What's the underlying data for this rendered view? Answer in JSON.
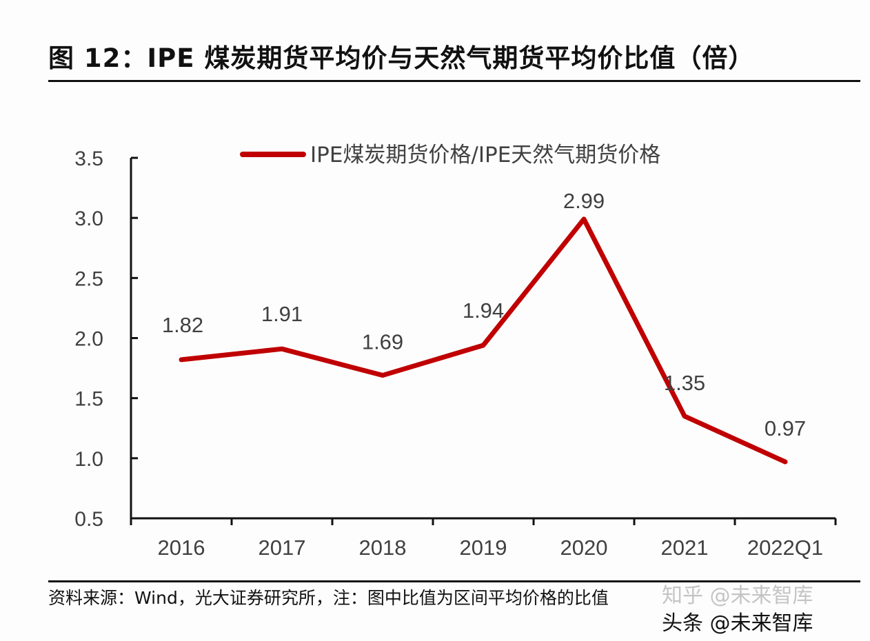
{
  "title": "图 12：IPE 煤炭期货平均价与天然气期货平均价比值（倍）",
  "source": "资料来源：Wind，光大证券研究所，注：图中比值为区间平均价格的比值",
  "watermarks": [
    "知乎 @未来智库",
    "头条 @未来智库"
  ],
  "chart_data": {
    "type": "line",
    "title": "",
    "xlabel": "",
    "ylabel": "",
    "categories": [
      "2016",
      "2017",
      "2018",
      "2019",
      "2020",
      "2021",
      "2022Q1"
    ],
    "series": [
      {
        "name": "IPE煤炭期货价格/IPE天然气期货价格",
        "values": [
          1.82,
          1.91,
          1.69,
          1.94,
          2.99,
          1.35,
          0.97
        ],
        "color": "#c00000"
      }
    ],
    "data_labels": [
      "1.82",
      "1.91",
      "1.69",
      "1.94",
      "2.99",
      "1.35",
      "0.97"
    ],
    "ylim": [
      0.5,
      3.5
    ],
    "yticks": [
      "0.5",
      "1.0",
      "1.5",
      "2.0",
      "2.5",
      "3.0",
      "3.5"
    ],
    "grid": false,
    "legend": "top-center"
  }
}
